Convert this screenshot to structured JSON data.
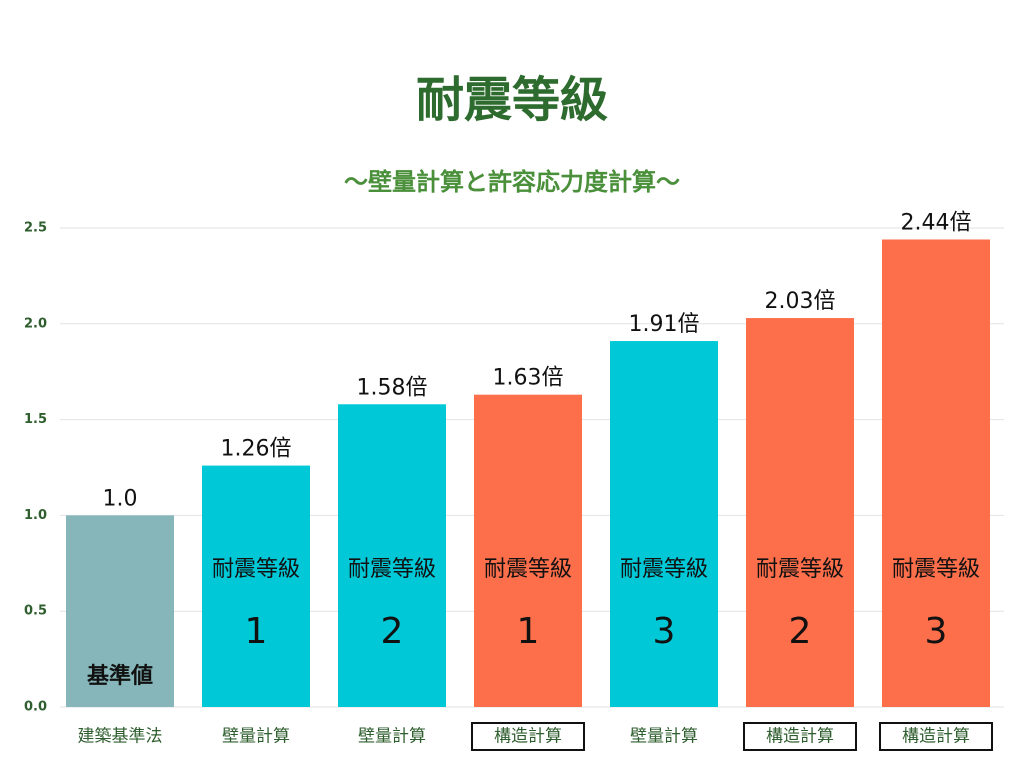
{
  "chart_data": {
    "type": "bar",
    "title": "耐震等級",
    "subtitle": "〜壁量計算と許容応力度計算〜",
    "categories": [
      "建築基準法",
      "壁量計算",
      "壁量計算",
      "構造計算",
      "壁量計算",
      "構造計算",
      "構造計算"
    ],
    "boxed_categories": [
      false,
      false,
      false,
      true,
      false,
      true,
      true
    ],
    "values": [
      1.0,
      1.26,
      1.58,
      1.63,
      1.91,
      2.03,
      2.44
    ],
    "value_labels": [
      "1.0",
      "1.26倍",
      "1.58倍",
      "1.63倍",
      "1.91倍",
      "2.03倍",
      "2.44倍"
    ],
    "colors": [
      "#86b6b9",
      "#00c8d7",
      "#00c8d7",
      "#fd6e4a",
      "#00c8d7",
      "#fd6e4a",
      "#fd6e4a"
    ],
    "bar_texts": [
      "基準値",
      "耐震等級",
      "耐震等級",
      "耐震等級",
      "耐震等級",
      "耐震等級",
      "耐震等級"
    ],
    "bar_grades": [
      null,
      1,
      2,
      1,
      3,
      2,
      3
    ],
    "ylim": [
      0,
      2.5
    ],
    "yticks": [
      {
        "value": 0,
        "label": "0.0"
      },
      0.5,
      {
        "value": 1,
        "label": "1.0"
      },
      1.5,
      {
        "value": 2,
        "label": "2.0"
      },
      2.5
    ],
    "grid": true
  }
}
